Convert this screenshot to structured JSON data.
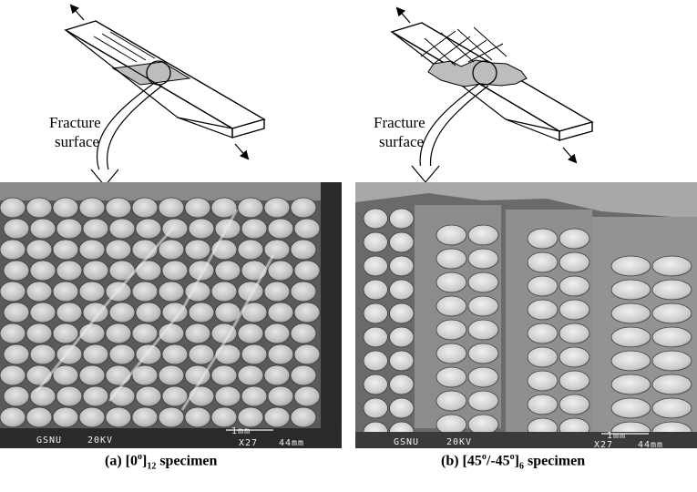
{
  "left_panel": {
    "label_line1": "Fracture",
    "label_line2": "surface",
    "caption_prefix": "(a) [0",
    "caption_sup": "o",
    "caption_bracket": "]",
    "caption_sub": "12",
    "caption_suffix": " specimen",
    "sem_info": [
      "GSNU",
      "20KV",
      "1mm",
      "X27",
      "44mm"
    ]
  },
  "right_panel": {
    "label_line1": "Fracture",
    "label_line2": "surface",
    "caption_prefix": "(b) [45",
    "caption_sup1": "o",
    "caption_mid": "/-45",
    "caption_sup2": "o",
    "caption_bracket": "]",
    "caption_sub": "6",
    "caption_suffix": " specimen",
    "sem_info": [
      "GSNU",
      "20KV",
      "1mm",
      "X27",
      "44mm"
    ]
  },
  "colors": {
    "sem_background": "#5a5a5a",
    "fiber_fill": "#c9c9c9",
    "highlight": "#bdbdbd"
  },
  "icon_names": [
    "tension-arrow-icon",
    "magnifier-circle-icon",
    "curved-pointer-arrow-icon"
  ]
}
